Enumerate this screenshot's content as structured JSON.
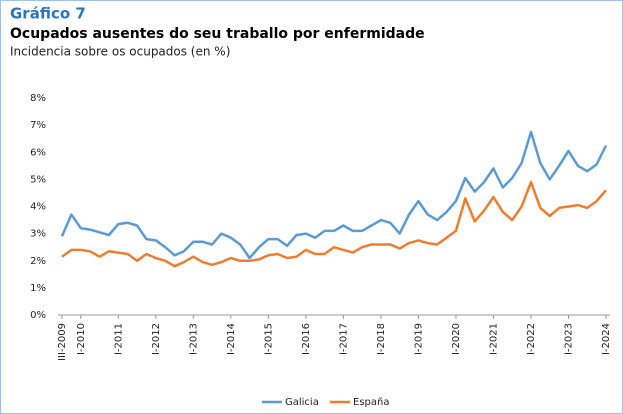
{
  "chart_data": {
    "type": "line",
    "label": "Gráfico 7",
    "title": "Ocupados ausentes do seu traballo por enfermidade",
    "subtitle": "Incidencia sobre os ocupados (en %)",
    "categories": [
      "III-2009",
      null,
      "I-2010",
      null,
      null,
      null,
      "I-2011",
      null,
      null,
      null,
      "I-2012",
      null,
      null,
      null,
      "I-2013",
      null,
      null,
      null,
      "I-2014",
      null,
      null,
      null,
      "I-2015",
      null,
      null,
      null,
      "I-2016",
      null,
      null,
      null,
      "I-2017",
      null,
      null,
      null,
      "I-2018",
      null,
      null,
      null,
      "I-2019",
      null,
      null,
      null,
      "I-2020",
      null,
      null,
      null,
      "I-2021",
      null,
      null,
      null,
      "I-2022",
      null,
      null,
      null,
      "I-2023",
      null,
      null,
      null,
      "I-2024"
    ],
    "series": [
      {
        "name": "Galicia",
        "color": "#5b9bd5",
        "values": [
          2.9,
          3.7,
          3.2,
          3.15,
          3.05,
          2.95,
          3.35,
          3.4,
          3.3,
          2.8,
          2.75,
          2.5,
          2.2,
          2.35,
          2.7,
          2.7,
          2.6,
          3.0,
          2.85,
          2.6,
          2.1,
          2.5,
          2.8,
          2.8,
          2.55,
          2.95,
          3.0,
          2.85,
          3.1,
          3.1,
          3.3,
          3.1,
          3.1,
          3.3,
          3.5,
          3.4,
          3.0,
          3.7,
          4.2,
          3.7,
          3.5,
          3.8,
          4.2,
          5.05,
          4.55,
          4.9,
          5.4,
          4.7,
          5.05,
          5.6,
          6.75,
          5.6,
          5.0,
          5.5,
          6.05,
          5.5,
          5.3,
          5.55,
          6.25
        ]
      },
      {
        "name": "España",
        "color": "#ed7d31",
        "values": [
          2.15,
          2.4,
          2.4,
          2.35,
          2.15,
          2.35,
          2.3,
          2.25,
          2.0,
          2.25,
          2.1,
          2.0,
          1.8,
          1.95,
          2.15,
          1.95,
          1.85,
          1.95,
          2.1,
          2.0,
          2.0,
          2.05,
          2.2,
          2.25,
          2.1,
          2.15,
          2.4,
          2.25,
          2.25,
          2.5,
          2.4,
          2.3,
          2.5,
          2.6,
          2.6,
          2.6,
          2.45,
          2.65,
          2.75,
          2.65,
          2.6,
          2.85,
          3.1,
          4.3,
          3.45,
          3.85,
          4.35,
          3.8,
          3.5,
          4.0,
          4.9,
          3.95,
          3.65,
          3.95,
          4.0,
          4.05,
          3.95,
          4.2,
          4.6
        ]
      }
    ],
    "ylim": [
      0,
      8
    ],
    "yticks": [
      {
        "value": 0,
        "label": "0%"
      },
      {
        "value": 1,
        "label": "1%"
      },
      {
        "value": 2,
        "label": "2%"
      },
      {
        "value": 3,
        "label": "3%"
      },
      {
        "value": 4,
        "label": "4%"
      },
      {
        "value": 5,
        "label": "5%"
      },
      {
        "value": 6,
        "label": "6%"
      },
      {
        "value": 7,
        "label": "7%"
      },
      {
        "value": 8,
        "label": "8%"
      }
    ],
    "grid": false,
    "legend": "bottom"
  }
}
